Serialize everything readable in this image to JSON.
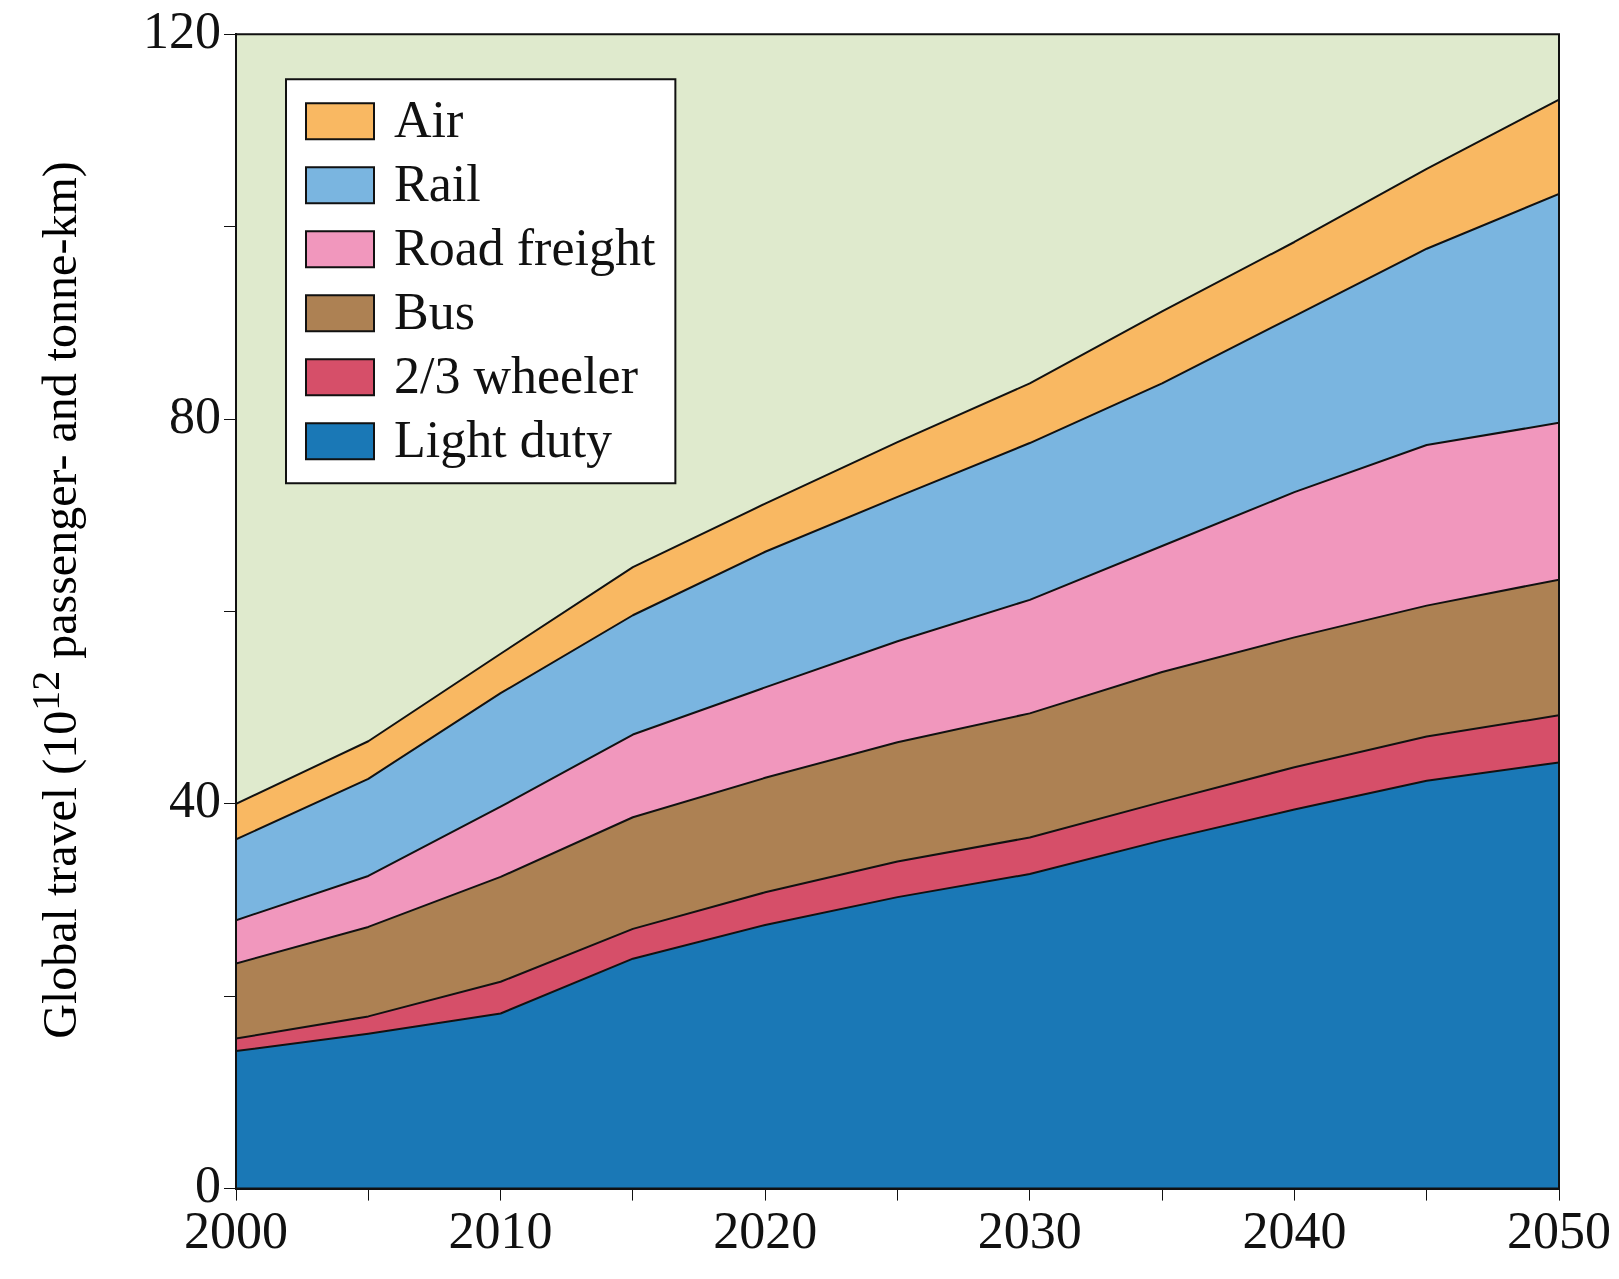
{
  "chart_data": {
    "type": "area",
    "stacked": true,
    "ylabel": "Global travel (10$^{12}$ passenger- and tonne-km)",
    "x": [
      2000,
      2005,
      2010,
      2015,
      2020,
      2025,
      2030,
      2035,
      2040,
      2045,
      2050
    ],
    "series": [
      {
        "name": "Light duty",
        "color": "#1a78b6",
        "values": [
          14.3,
          16.1,
          18.2,
          23.9,
          27.4,
          30.3,
          32.7,
          36.2,
          39.4,
          42.4,
          44.3
        ]
      },
      {
        "name": "2/3 wheeler",
        "color": "#d64f69",
        "values": [
          1.3,
          1.8,
          3.3,
          3.1,
          3.4,
          3.7,
          3.8,
          4.0,
          4.4,
          4.6,
          4.9
        ]
      },
      {
        "name": "Bus",
        "color": "#ad8153",
        "values": [
          7.8,
          9.3,
          10.9,
          11.6,
          11.9,
          12.4,
          12.9,
          13.5,
          13.5,
          13.6,
          14.1
        ]
      },
      {
        "name": "Road freight",
        "color": "#f197bd",
        "values": [
          4.5,
          5.3,
          7.3,
          8.6,
          9.4,
          10.5,
          11.8,
          13.1,
          15.1,
          16.7,
          16.3
        ]
      },
      {
        "name": "Rail",
        "color": "#7ab5e0",
        "values": [
          8.4,
          10.1,
          11.8,
          12.4,
          14.1,
          15.0,
          16.3,
          16.9,
          18.3,
          20.4,
          23.8
        ]
      },
      {
        "name": "Air",
        "color": "#f9b862",
        "values": [
          3.7,
          3.9,
          4.1,
          5.0,
          5.0,
          5.7,
          6.2,
          7.5,
          7.7,
          8.3,
          9.8
        ]
      }
    ],
    "xlim": [
      2000,
      2050
    ],
    "xticks": [
      2000,
      {
        "value": 2005,
        "label": null
      },
      2010,
      {
        "value": 2015,
        "label": null
      },
      2020,
      {
        "value": 2025,
        "label": null
      },
      2030,
      {
        "value": 2035,
        "label": null
      },
      2040,
      {
        "value": 2045,
        "label": null
      },
      2050
    ],
    "ylim": [
      0,
      120
    ],
    "yticks": [
      0,
      {
        "value": 20,
        "label": null
      },
      40,
      {
        "value": 60,
        "label": null
      },
      80,
      {
        "value": 100,
        "label": null
      },
      120
    ],
    "legend": "top left",
    "grid": false
  }
}
